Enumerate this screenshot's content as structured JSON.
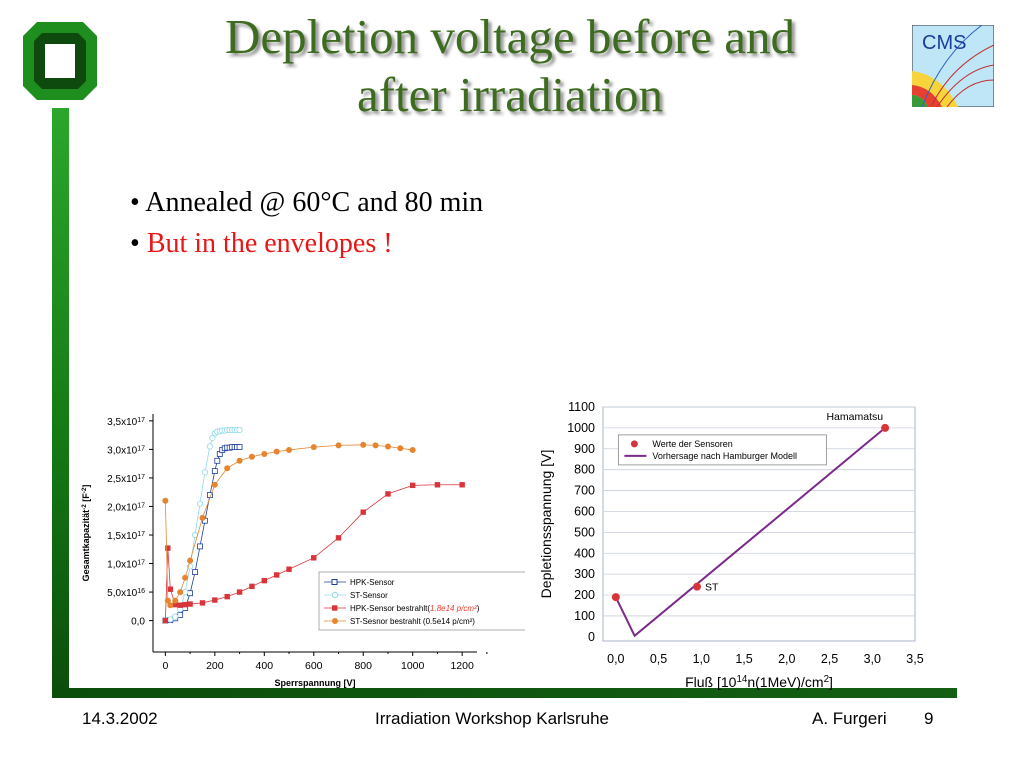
{
  "slide": {
    "title_line1": "Depletion voltage before and",
    "title_line2": "after irradiation",
    "bullet1": "• Annealed @ 60°C and 80 min",
    "bullet2_prefix": "• ",
    "bullet2": "But in the envelopes !",
    "accent_color": "#3d6b1f",
    "bar_color": "#1e8f1e",
    "highlight_color": "#e81616"
  },
  "logos": {
    "left": "ka-logo-icon",
    "right_text": "CMS"
  },
  "footer": {
    "date": "14.3.2002",
    "event": "Irradiation Workshop Karlsruhe",
    "author": "A. Furgeri",
    "page": "9"
  },
  "chart_data": [
    {
      "type": "scatter",
      "ylabel": "Gesamtkapazität⁻² [F⁻²]",
      "xlabel": "Sperrspannung [V]",
      "xlim": [
        -50,
        1260
      ],
      "ylim": [
        -5.5e+16,
        3.62e+17
      ],
      "x_ticks": [
        "0",
        "200",
        "400",
        "600",
        "800",
        "1000",
        "1200"
      ],
      "y_ticks": [
        "0,0",
        "5,0x10¹⁶",
        "1,0x10¹⁷",
        "1,5x10¹⁷",
        "2,0x10¹⁷",
        "2,5x10¹⁷",
        "3,0x10¹⁷",
        "3,5x10¹⁷"
      ],
      "legend_position": "bottom-right",
      "series": [
        {
          "name": "HPK-Sensor",
          "color": "#1f3f9a",
          "marker": "open-square",
          "x": [
            0,
            20,
            40,
            60,
            80,
            100,
            120,
            140,
            160,
            180,
            200,
            210,
            220,
            230,
            240,
            250,
            260,
            270,
            280,
            290,
            300
          ],
          "y": [
            0.0,
            1000000000000000.0,
            4000000000000000.0,
            1e+16,
            2.2e+16,
            4.8e+16,
            8.5e+16,
            1.3e+17,
            1.75e+17,
            2.2e+17,
            2.62e+17,
            2.8e+17,
            2.92e+17,
            2.99e+17,
            3.02e+17,
            3.03e+17,
            3.03e+17,
            3.04e+17,
            3.04e+17,
            3.04e+17,
            3.04e+17
          ]
        },
        {
          "name": "ST-Sensor",
          "color": "#8fd8e8",
          "marker": "open-circle",
          "x": [
            0,
            20,
            40,
            60,
            80,
            100,
            120,
            140,
            160,
            180,
            190,
            200,
            210,
            220,
            230,
            240,
            250,
            260,
            270,
            280,
            290,
            300
          ],
          "y": [
            0.0,
            2000000000000000.0,
            7000000000000000.0,
            2e+16,
            5e+16,
            9.5e+16,
            1.5e+17,
            2.05e+17,
            2.6e+17,
            3.05e+17,
            3.2e+17,
            3.28e+17,
            3.31e+17,
            3.32e+17,
            3.33e+17,
            3.33e+17,
            3.34e+17,
            3.34e+17,
            3.34e+17,
            3.34e+17,
            3.34e+17,
            3.34e+17
          ]
        },
        {
          "name": "HPK-Sensor bestrahlt(1.8e14 p/cm²)",
          "color": "#d9343a",
          "marker": "filled-square",
          "x": [
            0,
            10,
            20,
            40,
            60,
            80,
            100,
            150,
            200,
            250,
            300,
            350,
            400,
            450,
            500,
            600,
            700,
            800,
            900,
            1000,
            1100,
            1200
          ],
          "y": [
            0.0,
            1.27e+17,
            5.5e+16,
            2.8e+16,
            2.7e+16,
            2.8e+16,
            2.9e+16,
            3.1e+16,
            3.6e+16,
            4.2e+16,
            5e+16,
            6e+16,
            7e+16,
            8e+16,
            9e+16,
            1.1e+17,
            1.45e+17,
            1.9e+17,
            2.22e+17,
            2.37e+17,
            2.38e+17,
            2.38e+17
          ]
        },
        {
          "name": "ST-Sesnor bestrahlt (0.5e14 p/cm²)",
          "color": "#e5862f",
          "marker": "filled-circle",
          "x": [
            0,
            10,
            20,
            40,
            60,
            80,
            100,
            150,
            200,
            250,
            300,
            350,
            400,
            450,
            500,
            600,
            700,
            800,
            850,
            900,
            950,
            1000
          ],
          "y": [
            2.1e+17,
            3.5e+16,
            2.7e+16,
            3.5e+16,
            5e+16,
            7.5e+16,
            1.05e+17,
            1.8e+17,
            2.38e+17,
            2.67e+17,
            2.8e+17,
            2.87e+17,
            2.92e+17,
            2.96e+17,
            2.99e+17,
            3.04e+17,
            3.07e+17,
            3.08e+17,
            3.07e+17,
            3.05e+17,
            3.02e+17,
            2.99e+17
          ]
        }
      ]
    },
    {
      "type": "line",
      "ylabel": "Depletionsspannung [V]",
      "xlabel": "Fluß [10¹⁴n(1MeV)/cm²]",
      "xlim": [
        -0.15,
        3.5
      ],
      "ylim": [
        -20,
        1100
      ],
      "x_ticks": [
        "0,0",
        "0,5",
        "1,0",
        "1,5",
        "2,0",
        "2,5",
        "3,0",
        "3,5"
      ],
      "y_ticks": [
        "0",
        "100",
        "200",
        "300",
        "400",
        "500",
        "600",
        "700",
        "800",
        "900",
        "1000",
        "1100"
      ],
      "legend_position": "top-left",
      "points_label": "Werte der Sensoren",
      "line_label": "Vorhersage nach Hamburger Modell",
      "points": {
        "x": [
          0.0,
          0.95,
          3.15
        ],
        "y": [
          190,
          240,
          1000
        ],
        "labels": [
          "",
          "ST",
          "Hamamatsu"
        ],
        "color": "#d9343a"
      },
      "model_line": {
        "x": [
          0.0,
          0.22,
          3.15
        ],
        "y": [
          190,
          5,
          1000
        ],
        "color": "#7a2a8a"
      }
    }
  ]
}
